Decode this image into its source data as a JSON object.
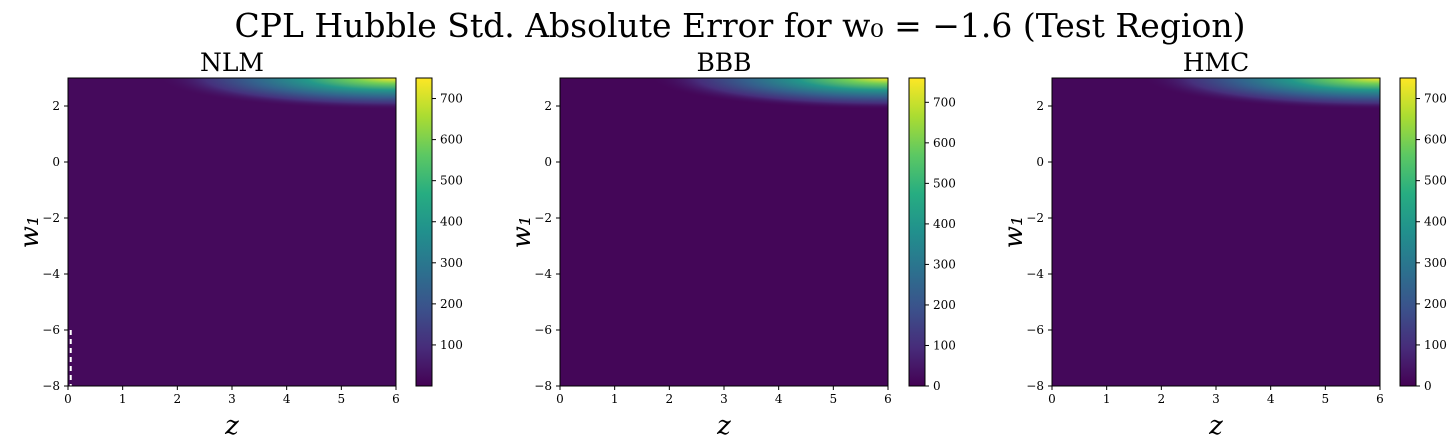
{
  "title": "CPL Hubble Std. Absolute Error for w₀ = −1.6 (Test Region)",
  "chart_data": [
    {
      "type": "heatmap",
      "title": "NLM",
      "xlabel": "z",
      "ylabel": "w₁",
      "xlim": [
        0,
        6
      ],
      "ylim": [
        -8,
        3
      ],
      "xticks": [
        0,
        1,
        2,
        3,
        4,
        5,
        6
      ],
      "yticks": [
        -8,
        -6,
        -4,
        -2,
        0,
        2
      ],
      "colorbar": {
        "min": 0,
        "max": 750,
        "ticks": [
          100,
          200,
          300,
          400,
          500,
          600,
          700
        ],
        "colormap": "viridis"
      },
      "background_value": 20,
      "peak": {
        "x": 6,
        "y": 3,
        "value": 750
      },
      "annotation": "white dashed vertical line near z = 0.05 for w₁ from −8 to −6"
    },
    {
      "type": "heatmap",
      "title": "BBB",
      "xlabel": "z",
      "ylabel": "w₁",
      "xlim": [
        0,
        6
      ],
      "ylim": [
        -8,
        3
      ],
      "xticks": [
        0,
        1,
        2,
        3,
        4,
        5,
        6
      ],
      "yticks": [
        -8,
        -6,
        -4,
        -2,
        0,
        2
      ],
      "colorbar": {
        "min": 0,
        "max": 760,
        "ticks": [
          0,
          100,
          200,
          300,
          400,
          500,
          600,
          700
        ],
        "colormap": "viridis"
      },
      "background_value": 10,
      "peak": {
        "x": 6,
        "y": 3,
        "value": 760
      }
    },
    {
      "type": "heatmap",
      "title": "HMC",
      "xlabel": "z",
      "ylabel": "w₁",
      "xlim": [
        0,
        6
      ],
      "ylim": [
        -8,
        3
      ],
      "xticks": [
        0,
        1,
        2,
        3,
        4,
        5,
        6
      ],
      "yticks": [
        -8,
        -6,
        -4,
        -2,
        0,
        2
      ],
      "colorbar": {
        "min": 0,
        "max": 750,
        "ticks": [
          0,
          100,
          200,
          300,
          400,
          500,
          600,
          700
        ],
        "colormap": "viridis"
      },
      "background_value": 15,
      "peak": {
        "x": 6,
        "y": 3,
        "value": 750
      }
    }
  ]
}
